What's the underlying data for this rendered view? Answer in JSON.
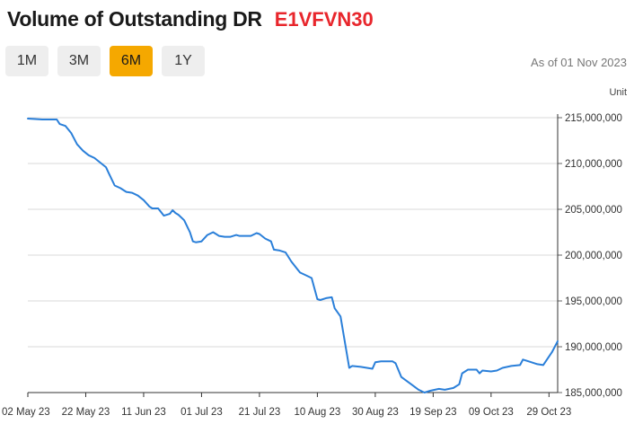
{
  "header": {
    "title": "Volume of Outstanding DR",
    "symbol": "E1VFVN30",
    "symbol_color": "#e8262c"
  },
  "range_tabs": [
    {
      "label": "1M",
      "active": false
    },
    {
      "label": "3M",
      "active": false
    },
    {
      "label": "6M",
      "active": true
    },
    {
      "label": "1Y",
      "active": false
    }
  ],
  "as_of": "As of 01 Nov 2023",
  "unit_label": "Unit",
  "colors": {
    "line": "#2a7fd9",
    "grid": "#d9d9d9",
    "active_tab": "#f5a800"
  },
  "chart_data": {
    "type": "line",
    "title": "Volume of Outstanding DR",
    "xlabel": "",
    "ylabel": "Unit",
    "ylim": [
      185000000,
      215000000
    ],
    "y_ticks": [
      "215,000,000",
      "210,000,000",
      "205,000,000",
      "200,000,000",
      "195,000,000",
      "190,000,000",
      "185,000,000"
    ],
    "y_tick_values": [
      215000000,
      210000000,
      205000000,
      200000000,
      195000000,
      190000000,
      185000000
    ],
    "x_ticks": [
      "02 May 23",
      "22 May 23",
      "11 Jun 23",
      "01 Jul 23",
      "21 Jul 23",
      "10 Aug 23",
      "30 Aug 23",
      "19 Sep 23",
      "09 Oct 23",
      "29 Oct 23"
    ],
    "x_range": [
      "02 May 23",
      "01 Nov 23"
    ],
    "grid": true,
    "series": [
      {
        "x": [
          "2023-05-02",
          "2023-05-07",
          "2023-05-12",
          "2023-05-13",
          "2023-05-15",
          "2023-05-17",
          "2023-05-19",
          "2023-05-21",
          "2023-05-23",
          "2023-05-25",
          "2023-05-27",
          "2023-05-29",
          "2023-05-30",
          "2023-06-01",
          "2023-06-03",
          "2023-06-05",
          "2023-06-07",
          "2023-06-09",
          "2023-06-11",
          "2023-06-13",
          "2023-06-14",
          "2023-06-15",
          "2023-06-16",
          "2023-06-18",
          "2023-06-20",
          "2023-06-21",
          "2023-06-22",
          "2023-06-23",
          "2023-06-25",
          "2023-06-27",
          "2023-06-28",
          "2023-06-29",
          "2023-07-01",
          "2023-07-03",
          "2023-07-05",
          "2023-07-06",
          "2023-07-07",
          "2023-07-09",
          "2023-07-11",
          "2023-07-13",
          "2023-07-14",
          "2023-07-16",
          "2023-07-18",
          "2023-07-20",
          "2023-07-21",
          "2023-07-23",
          "2023-07-25",
          "2023-07-26",
          "2023-07-28",
          "2023-07-30",
          "2023-08-01",
          "2023-08-03",
          "2023-08-04",
          "2023-08-06",
          "2023-08-08",
          "2023-08-10",
          "2023-08-11",
          "2023-08-13",
          "2023-08-15",
          "2023-08-16",
          "2023-08-18",
          "2023-08-21",
          "2023-08-22",
          "2023-08-25",
          "2023-08-29",
          "2023-08-30",
          "2023-09-01",
          "2023-09-05",
          "2023-09-06",
          "2023-09-08",
          "2023-09-11",
          "2023-09-14",
          "2023-09-16",
          "2023-09-18",
          "2023-09-21",
          "2023-09-23",
          "2023-09-26",
          "2023-09-28",
          "2023-09-29",
          "2023-10-01",
          "2023-10-04",
          "2023-10-05",
          "2023-10-06",
          "2023-10-09",
          "2023-10-11",
          "2023-10-13",
          "2023-10-16",
          "2023-10-19",
          "2023-10-20",
          "2023-10-22",
          "2023-10-25",
          "2023-10-27",
          "2023-10-30",
          "2023-11-01"
        ],
        "y": [
          214900000,
          214800000,
          214800000,
          214300000,
          214100000,
          213300000,
          212100000,
          211400000,
          210900000,
          210600000,
          210100000,
          209600000,
          208900000,
          207600000,
          207300000,
          206900000,
          206800000,
          206500000,
          206000000,
          205300000,
          205100000,
          205100000,
          205100000,
          204300000,
          204500000,
          204900000,
          204600000,
          204400000,
          203800000,
          202500000,
          201500000,
          201400000,
          201500000,
          202200000,
          202500000,
          202300000,
          202100000,
          202000000,
          202000000,
          202200000,
          202100000,
          202100000,
          202100000,
          202400000,
          202300000,
          201800000,
          201500000,
          200600000,
          200500000,
          200300000,
          199300000,
          198500000,
          198100000,
          197800000,
          197500000,
          195200000,
          195100000,
          195300000,
          195400000,
          194200000,
          193300000,
          187700000,
          187900000,
          187800000,
          187600000,
          188300000,
          188400000,
          188400000,
          188200000,
          186700000,
          186000000,
          185300000,
          185000000,
          185200000,
          185400000,
          185300000,
          185500000,
          185900000,
          187100000,
          187500000,
          187500000,
          187100000,
          187400000,
          187300000,
          187400000,
          187700000,
          187900000,
          188000000,
          188600000,
          188400000,
          188100000,
          188000000,
          189400000,
          190600000
        ]
      }
    ]
  }
}
